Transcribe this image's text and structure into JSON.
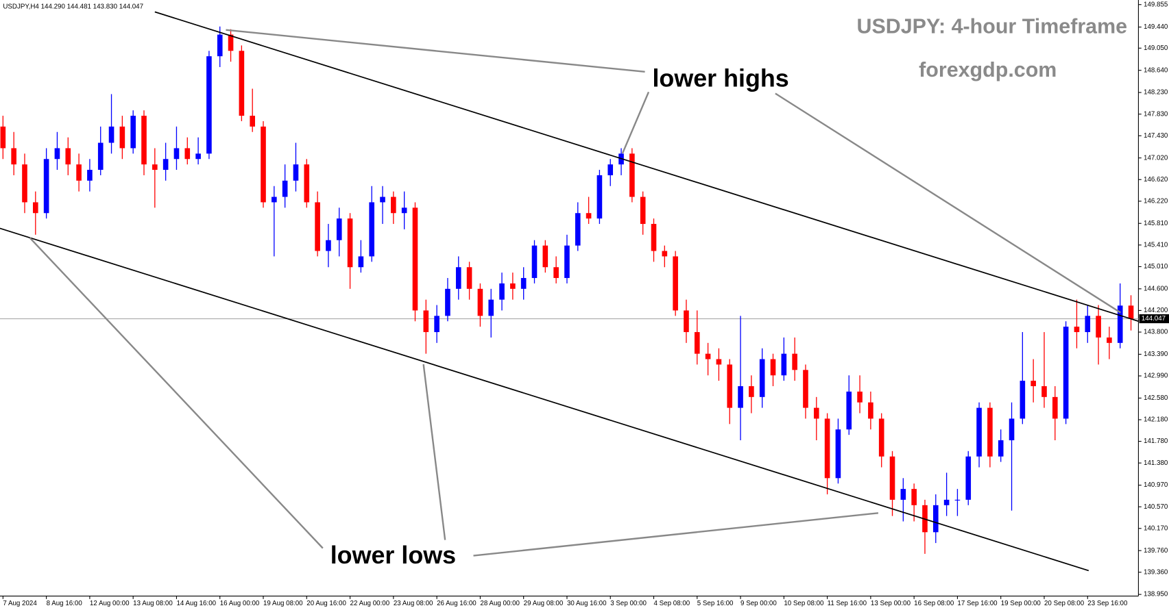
{
  "chart_data": {
    "type": "candlestick",
    "legend_text": "USDJPY,H4  144.290 144.481 143.830 144.047",
    "title": "USDJPY: 4-hour Timeframe",
    "subtitle": "forexgdp.com",
    "annotations": [
      "lower highs",
      "lower lows"
    ],
    "up_color": "#0000ff",
    "down_color": "#ff0000",
    "open": [
      147.6,
      147.2,
      146.9,
      146.2,
      146.0,
      147.0,
      147.2,
      146.9,
      146.6,
      146.8,
      147.3,
      147.6,
      147.2,
      147.8,
      146.9,
      146.8,
      147.0,
      147.2,
      147.0,
      147.1,
      148.9,
      149.3,
      149.0,
      147.8,
      147.6,
      146.2,
      146.3,
      146.6,
      146.9,
      146.2,
      145.3,
      145.5,
      145.9,
      145.0,
      145.2,
      146.2,
      146.3,
      146.0,
      146.1,
      144.2,
      143.8,
      144.1,
      144.6,
      145.0,
      144.6,
      144.1,
      144.4,
      144.7,
      144.6,
      144.8,
      145.4,
      145.0,
      144.8,
      145.4,
      146.0,
      145.9,
      146.7,
      146.9,
      147.1,
      146.3,
      145.8,
      145.3,
      145.2,
      144.2,
      143.8,
      143.4,
      143.3,
      143.2,
      142.4,
      142.8,
      142.6,
      143.3,
      143.0,
      143.4,
      143.1,
      142.4,
      142.2,
      141.1,
      142.0,
      142.7,
      142.5,
      142.2,
      141.5,
      140.7,
      140.9,
      140.6,
      140.1,
      140.6,
      140.7,
      140.7,
      141.5,
      142.4,
      141.5,
      141.8,
      142.2,
      142.9,
      142.8,
      142.6,
      142.2,
      143.9,
      143.8,
      144.1,
      143.7,
      143.6,
      144.29
    ],
    "high": [
      147.8,
      147.5,
      147.1,
      146.4,
      147.2,
      147.5,
      147.4,
      147.1,
      147.0,
      147.6,
      148.2,
      147.8,
      147.9,
      147.9,
      147.2,
      147.3,
      147.6,
      147.4,
      147.4,
      149.0,
      149.45,
      149.4,
      149.1,
      148.3,
      147.7,
      146.5,
      146.9,
      147.3,
      147.0,
      146.4,
      145.8,
      146.1,
      146.0,
      145.5,
      146.5,
      146.5,
      146.4,
      146.4,
      146.2,
      144.4,
      144.3,
      144.8,
      145.2,
      145.1,
      144.7,
      144.6,
      144.9,
      144.9,
      145.0,
      145.5,
      145.5,
      145.2,
      145.6,
      146.2,
      146.3,
      146.8,
      147.0,
      147.2,
      147.2,
      146.4,
      145.9,
      145.4,
      145.3,
      144.4,
      144.2,
      143.6,
      143.5,
      143.3,
      144.1,
      143.0,
      143.5,
      143.4,
      143.7,
      143.7,
      143.2,
      142.6,
      142.3,
      142.2,
      143.0,
      143.0,
      142.7,
      142.3,
      141.6,
      141.1,
      141.0,
      140.7,
      140.8,
      141.2,
      140.9,
      141.6,
      142.5,
      142.5,
      142.0,
      142.5,
      143.8,
      143.3,
      143.8,
      142.8,
      144.0,
      144.4,
      144.3,
      144.3,
      143.9,
      144.7,
      144.481
    ],
    "low": [
      147.0,
      146.7,
      146.0,
      145.6,
      145.9,
      146.8,
      146.7,
      146.4,
      146.4,
      146.7,
      147.1,
      147.0,
      147.1,
      146.7,
      146.1,
      146.6,
      146.8,
      146.9,
      146.9,
      147.0,
      148.7,
      148.8,
      147.7,
      147.5,
      146.1,
      145.2,
      146.1,
      146.4,
      146.1,
      145.2,
      145.0,
      145.2,
      144.6,
      144.9,
      145.1,
      145.8,
      145.8,
      145.7,
      144.0,
      143.4,
      143.6,
      144.0,
      144.4,
      144.4,
      143.9,
      143.7,
      144.2,
      144.4,
      144.4,
      144.7,
      144.9,
      144.7,
      144.7,
      145.3,
      145.8,
      145.8,
      146.5,
      146.7,
      146.2,
      145.6,
      145.1,
      145.0,
      144.1,
      143.6,
      143.2,
      143.0,
      142.9,
      142.1,
      141.8,
      142.3,
      142.4,
      142.8,
      142.9,
      142.9,
      142.2,
      141.8,
      140.8,
      141.0,
      141.9,
      142.3,
      142.0,
      141.3,
      140.4,
      140.3,
      140.3,
      139.7,
      139.9,
      140.4,
      140.4,
      140.6,
      141.3,
      141.3,
      141.4,
      140.5,
      142.1,
      142.5,
      142.4,
      141.8,
      142.1,
      143.5,
      143.6,
      143.2,
      143.3,
      143.5,
      143.83
    ],
    "close": [
      147.2,
      146.9,
      146.2,
      146.0,
      147.0,
      147.2,
      146.9,
      146.6,
      146.8,
      147.3,
      147.6,
      147.2,
      147.8,
      146.9,
      146.8,
      147.0,
      147.2,
      147.0,
      147.1,
      148.9,
      149.3,
      149.0,
      147.8,
      147.6,
      146.2,
      146.3,
      146.6,
      146.9,
      146.2,
      145.3,
      145.5,
      145.9,
      145.0,
      145.2,
      146.2,
      146.3,
      146.0,
      146.1,
      144.2,
      143.8,
      144.1,
      144.6,
      145.0,
      144.6,
      144.1,
      144.4,
      144.7,
      144.6,
      144.8,
      145.4,
      145.0,
      144.8,
      145.4,
      146.0,
      145.9,
      146.7,
      146.9,
      147.1,
      146.3,
      145.8,
      145.3,
      145.2,
      144.2,
      143.8,
      143.4,
      143.3,
      143.2,
      142.4,
      142.8,
      142.6,
      143.3,
      143.0,
      143.4,
      143.1,
      142.4,
      142.2,
      141.1,
      142.0,
      142.7,
      142.5,
      142.2,
      141.5,
      140.7,
      140.9,
      140.6,
      140.1,
      140.6,
      140.7,
      140.7,
      141.5,
      142.4,
      141.5,
      141.8,
      142.2,
      142.9,
      142.8,
      142.6,
      142.2,
      143.9,
      143.8,
      144.1,
      143.7,
      143.6,
      144.29,
      144.047
    ],
    "last_price": 144.047,
    "trendlines": [
      {
        "x": [
          14,
          104.7
        ],
        "y": [
          149.72,
          144.0
        ],
        "color": "#000000"
      },
      {
        "x": [
          -0.3,
          100.1
        ],
        "y": [
          145.72,
          139.39
        ],
        "color": "#000000"
      }
    ],
    "xlim": [
      -0.3,
      104.7
    ],
    "ylim": [
      138.92,
      149.94
    ],
    "yticks": [
      149.855,
      {
        "value": 149.44,
        "label": "149.440"
      },
      {
        "value": 149.05,
        "label": "149.050"
      },
      {
        "value": 148.64,
        "label": "148.640"
      },
      {
        "value": 148.23,
        "label": "148.230"
      },
      {
        "value": 147.83,
        "label": "147.830"
      },
      {
        "value": 147.43,
        "label": "147.430"
      },
      {
        "value": 147.02,
        "label": "147.020"
      },
      {
        "value": 146.62,
        "label": "146.620"
      },
      {
        "value": 146.22,
        "label": "146.220"
      },
      {
        "value": 145.81,
        "label": "145.810"
      },
      {
        "value": 145.41,
        "label": "145.410"
      },
      {
        "value": 145.01,
        "label": "145.010"
      },
      {
        "value": 144.6,
        "label": "144.600"
      },
      {
        "value": 144.2,
        "label": "144.200"
      },
      {
        "value": 143.8,
        "label": "143.800"
      },
      {
        "value": 143.39,
        "label": "143.390"
      },
      {
        "value": 142.99,
        "label": "142.990"
      },
      {
        "value": 142.58,
        "label": "142.580"
      },
      {
        "value": 142.18,
        "label": "142.180"
      },
      {
        "value": 141.78,
        "label": "141.780"
      },
      {
        "value": 141.38,
        "label": "141.380"
      },
      {
        "value": 140.97,
        "label": "140.970"
      },
      {
        "value": 140.57,
        "label": "140.570"
      },
      {
        "value": 140.17,
        "label": "140.170"
      },
      {
        "value": 139.76,
        "label": "139.760"
      },
      {
        "value": 139.36,
        "label": "139.360"
      },
      {
        "value": 138.95,
        "label": "138.950"
      }
    ],
    "xticks": [
      {
        "value": 0,
        "label": "7 Aug 2024"
      },
      {
        "value": 4,
        "label": "8 Aug 16:00"
      },
      {
        "value": 8,
        "label": "12 Aug 00:00"
      },
      {
        "value": 12,
        "label": "13 Aug 08:00"
      },
      {
        "value": 16,
        "label": "14 Aug 16:00"
      },
      {
        "value": 20,
        "label": "16 Aug 00:00"
      },
      {
        "value": 24,
        "label": "19 Aug 08:00"
      },
      {
        "value": 28,
        "label": "20 Aug 16:00"
      },
      {
        "value": 32,
        "label": "22 Aug 00:00"
      },
      {
        "value": 36,
        "label": "23 Aug 08:00"
      },
      {
        "value": 40,
        "label": "26 Aug 16:00"
      },
      {
        "value": 44,
        "label": "28 Aug 00:00"
      },
      {
        "value": 48,
        "label": "29 Aug 08:00"
      },
      {
        "value": 52,
        "label": "30 Aug 16:00"
      },
      {
        "value": 56,
        "label": "3 Sep 00:00"
      },
      {
        "value": 60,
        "label": "4 Sep 08:00"
      },
      {
        "value": 64,
        "label": "5 Sep 16:00"
      },
      {
        "value": 68,
        "label": "9 Sep 00:00"
      },
      {
        "value": 72,
        "label": "10 Sep 08:00"
      },
      {
        "value": 76,
        "label": "11 Sep 16:00"
      },
      {
        "value": 80,
        "label": "13 Sep 00:00"
      },
      {
        "value": 84,
        "label": "16 Sep 08:00"
      },
      {
        "value": 88,
        "label": "17 Sep 16:00"
      },
      {
        "value": 92,
        "label": "19 Sep 00:00"
      },
      {
        "value": 96,
        "label": "20 Sep 08:00"
      },
      {
        "value": 100,
        "label": "23 Sep 16:00"
      }
    ],
    "grid": false
  }
}
